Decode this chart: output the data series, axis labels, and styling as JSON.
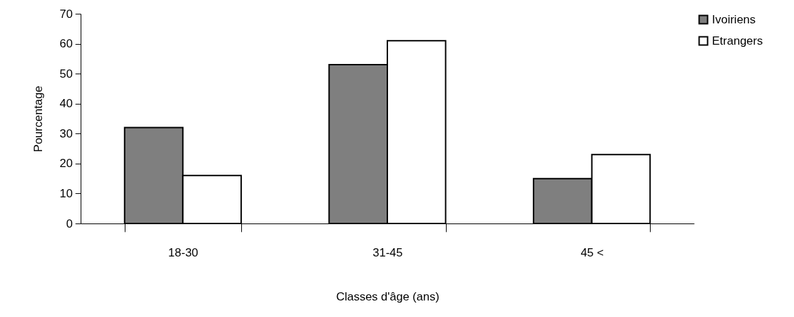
{
  "chart_data": {
    "type": "bar",
    "xlabel": "Classes d'âge (ans)",
    "ylabel": "Pourcentage",
    "categories": [
      "18-30",
      "31-45",
      "45 <"
    ],
    "series": [
      {
        "name": "Ivoiriens",
        "color": "#7f7f7f",
        "values": [
          32,
          53,
          15
        ]
      },
      {
        "name": "Etrangers",
        "color": "#ffffff",
        "values": [
          16,
          61,
          23
        ]
      }
    ],
    "ylim": [
      0,
      70
    ],
    "yticks": [
      0,
      10,
      20,
      30,
      40,
      50,
      60,
      70
    ],
    "grid": false,
    "legend": "right"
  }
}
